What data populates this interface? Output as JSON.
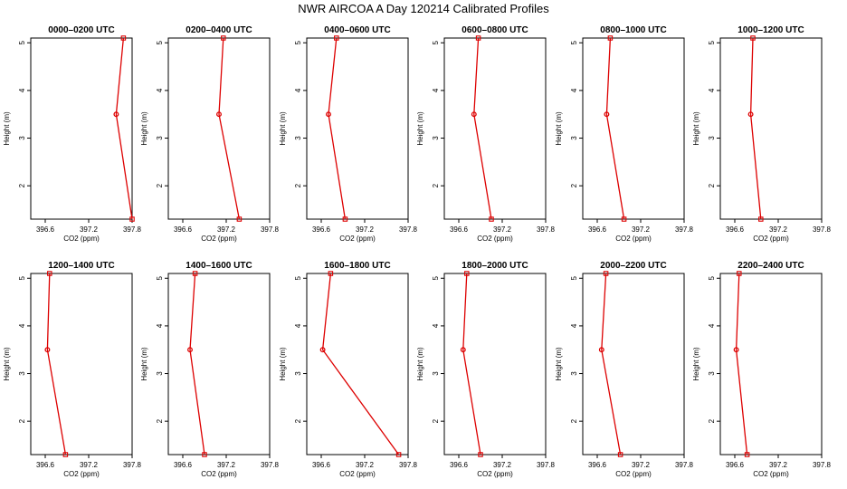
{
  "figure_title": "NWR AIRCOA A  Day 120214  Calibrated Profiles",
  "colors": {
    "series": "#dd0000",
    "axis": "#000000",
    "background": "#ffffff"
  },
  "chart_data": [
    {
      "type": "line",
      "title": "0000–0200 UTC",
      "xlabel": "CO2 (ppm)",
      "ylabel": "Height (m)",
      "xlim": [
        396.4,
        397.8
      ],
      "ylim": [
        1.3,
        5.1
      ],
      "xticks": [
        "396.6",
        "397.2",
        "397.8"
      ],
      "xtick_values": [
        396.6,
        397.2,
        397.8
      ],
      "yticks": [
        "2",
        "3",
        "4",
        "5"
      ],
      "ytick_values": [
        2,
        3,
        4,
        5
      ],
      "points": [
        {
          "x": 397.68,
          "y": 5.1
        },
        {
          "x": 397.58,
          "y": 3.5
        },
        {
          "x": 397.8,
          "y": 1.3
        }
      ]
    },
    {
      "type": "line",
      "title": "0200–0400 UTC",
      "xlabel": "CO2 (ppm)",
      "ylabel": "Height (m)",
      "xlim": [
        396.4,
        397.8
      ],
      "ylim": [
        1.3,
        5.1
      ],
      "xticks": [
        "396.6",
        "397.2",
        "397.8"
      ],
      "xtick_values": [
        396.6,
        397.2,
        397.8
      ],
      "yticks": [
        "2",
        "3",
        "4",
        "5"
      ],
      "ytick_values": [
        2,
        3,
        4,
        5
      ],
      "points": [
        {
          "x": 397.16,
          "y": 5.1
        },
        {
          "x": 397.1,
          "y": 3.5
        },
        {
          "x": 397.38,
          "y": 1.3
        }
      ]
    },
    {
      "type": "line",
      "title": "0400–0600 UTC",
      "xlabel": "CO2 (ppm)",
      "ylabel": "Height (m)",
      "xlim": [
        396.4,
        397.8
      ],
      "ylim": [
        1.3,
        5.1
      ],
      "xticks": [
        "396.6",
        "397.2",
        "397.8"
      ],
      "xtick_values": [
        396.6,
        397.2,
        397.8
      ],
      "yticks": [
        "2",
        "3",
        "4",
        "5"
      ],
      "ytick_values": [
        2,
        3,
        4,
        5
      ],
      "points": [
        {
          "x": 396.81,
          "y": 5.1
        },
        {
          "x": 396.7,
          "y": 3.5
        },
        {
          "x": 396.93,
          "y": 1.3
        }
      ]
    },
    {
      "type": "line",
      "title": "0600–0800 UTC",
      "xlabel": "CO2 (ppm)",
      "ylabel": "Height (m)",
      "xlim": [
        396.4,
        397.8
      ],
      "ylim": [
        1.3,
        5.1
      ],
      "xticks": [
        "396.6",
        "397.2",
        "397.8"
      ],
      "xtick_values": [
        396.6,
        397.2,
        397.8
      ],
      "yticks": [
        "2",
        "3",
        "4",
        "5"
      ],
      "ytick_values": [
        2,
        3,
        4,
        5
      ],
      "points": [
        {
          "x": 396.87,
          "y": 5.1
        },
        {
          "x": 396.81,
          "y": 3.5
        },
        {
          "x": 397.05,
          "y": 1.3
        }
      ]
    },
    {
      "type": "line",
      "title": "0800–1000 UTC",
      "xlabel": "CO2 (ppm)",
      "ylabel": "Height (m)",
      "xlim": [
        396.4,
        397.8
      ],
      "ylim": [
        1.3,
        5.1
      ],
      "xticks": [
        "396.6",
        "397.2",
        "397.8"
      ],
      "xtick_values": [
        396.6,
        397.2,
        397.8
      ],
      "yticks": [
        "2",
        "3",
        "4",
        "5"
      ],
      "ytick_values": [
        2,
        3,
        4,
        5
      ],
      "points": [
        {
          "x": 396.78,
          "y": 5.1
        },
        {
          "x": 396.73,
          "y": 3.5
        },
        {
          "x": 396.97,
          "y": 1.3
        }
      ]
    },
    {
      "type": "line",
      "title": "1000–1200 UTC",
      "xlabel": "CO2 (ppm)",
      "ylabel": "Height (m)",
      "xlim": [
        396.4,
        397.8
      ],
      "ylim": [
        1.3,
        5.1
      ],
      "xticks": [
        "396.6",
        "397.2",
        "397.8"
      ],
      "xtick_values": [
        396.6,
        397.2,
        397.8
      ],
      "yticks": [
        "2",
        "3",
        "4",
        "5"
      ],
      "ytick_values": [
        2,
        3,
        4,
        5
      ],
      "points": [
        {
          "x": 396.85,
          "y": 5.1
        },
        {
          "x": 396.82,
          "y": 3.5
        },
        {
          "x": 396.96,
          "y": 1.3
        }
      ]
    },
    {
      "type": "line",
      "title": "1200–1400 UTC",
      "xlabel": "CO2 (ppm)",
      "ylabel": "Height (m)",
      "xlim": [
        396.4,
        397.8
      ],
      "ylim": [
        1.3,
        5.1
      ],
      "xticks": [
        "396.6",
        "397.2",
        "397.8"
      ],
      "xtick_values": [
        396.6,
        397.2,
        397.8
      ],
      "yticks": [
        "2",
        "3",
        "4",
        "5"
      ],
      "ytick_values": [
        2,
        3,
        4,
        5
      ],
      "points": [
        {
          "x": 396.66,
          "y": 5.1
        },
        {
          "x": 396.63,
          "y": 3.5
        },
        {
          "x": 396.88,
          "y": 1.3
        }
      ]
    },
    {
      "type": "line",
      "title": "1400–1600 UTC",
      "xlabel": "CO2 (ppm)",
      "ylabel": "Height (m)",
      "xlim": [
        396.4,
        397.8
      ],
      "ylim": [
        1.3,
        5.1
      ],
      "xticks": [
        "396.6",
        "397.2",
        "397.8"
      ],
      "xtick_values": [
        396.6,
        397.2,
        397.8
      ],
      "yticks": [
        "2",
        "3",
        "4",
        "5"
      ],
      "ytick_values": [
        2,
        3,
        4,
        5
      ],
      "points": [
        {
          "x": 396.77,
          "y": 5.1
        },
        {
          "x": 396.7,
          "y": 3.5
        },
        {
          "x": 396.9,
          "y": 1.3
        }
      ]
    },
    {
      "type": "line",
      "title": "1600–1800 UTC",
      "xlabel": "CO2 (ppm)",
      "ylabel": "Height (m)",
      "xlim": [
        396.4,
        397.8
      ],
      "ylim": [
        1.3,
        5.1
      ],
      "xticks": [
        "396.6",
        "397.2",
        "397.8"
      ],
      "xtick_values": [
        396.6,
        397.2,
        397.8
      ],
      "yticks": [
        "2",
        "3",
        "4",
        "5"
      ],
      "ytick_values": [
        2,
        3,
        4,
        5
      ],
      "points": [
        {
          "x": 396.73,
          "y": 5.1
        },
        {
          "x": 396.62,
          "y": 3.5
        },
        {
          "x": 397.67,
          "y": 1.3
        }
      ]
    },
    {
      "type": "line",
      "title": "1800–2000 UTC",
      "xlabel": "CO2 (ppm)",
      "ylabel": "Height (m)",
      "xlim": [
        396.4,
        397.8
      ],
      "ylim": [
        1.3,
        5.1
      ],
      "xticks": [
        "396.6",
        "397.2",
        "397.8"
      ],
      "xtick_values": [
        396.6,
        397.2,
        397.8
      ],
      "yticks": [
        "2",
        "3",
        "4",
        "5"
      ],
      "ytick_values": [
        2,
        3,
        4,
        5
      ],
      "points": [
        {
          "x": 396.71,
          "y": 5.1
        },
        {
          "x": 396.66,
          "y": 3.5
        },
        {
          "x": 396.9,
          "y": 1.3
        }
      ]
    },
    {
      "type": "line",
      "title": "2000–2200 UTC",
      "xlabel": "CO2 (ppm)",
      "ylabel": "Height (m)",
      "xlim": [
        396.4,
        397.8
      ],
      "ylim": [
        1.3,
        5.1
      ],
      "xticks": [
        "396.6",
        "397.2",
        "397.8"
      ],
      "xtick_values": [
        396.6,
        397.2,
        397.8
      ],
      "yticks": [
        "2",
        "3",
        "4",
        "5"
      ],
      "ytick_values": [
        2,
        3,
        4,
        5
      ],
      "points": [
        {
          "x": 396.72,
          "y": 5.1
        },
        {
          "x": 396.66,
          "y": 3.5
        },
        {
          "x": 396.92,
          "y": 1.3
        }
      ]
    },
    {
      "type": "line",
      "title": "2200–2400 UTC",
      "xlabel": "CO2 (ppm)",
      "ylabel": "Height (m)",
      "xlim": [
        396.4,
        397.8
      ],
      "ylim": [
        1.3,
        5.1
      ],
      "xticks": [
        "396.6",
        "397.2",
        "397.8"
      ],
      "xtick_values": [
        396.6,
        397.2,
        397.8
      ],
      "yticks": [
        "2",
        "3",
        "4",
        "5"
      ],
      "ytick_values": [
        2,
        3,
        4,
        5
      ],
      "points": [
        {
          "x": 396.66,
          "y": 5.1
        },
        {
          "x": 396.62,
          "y": 3.5
        },
        {
          "x": 396.77,
          "y": 1.3
        }
      ]
    }
  ]
}
